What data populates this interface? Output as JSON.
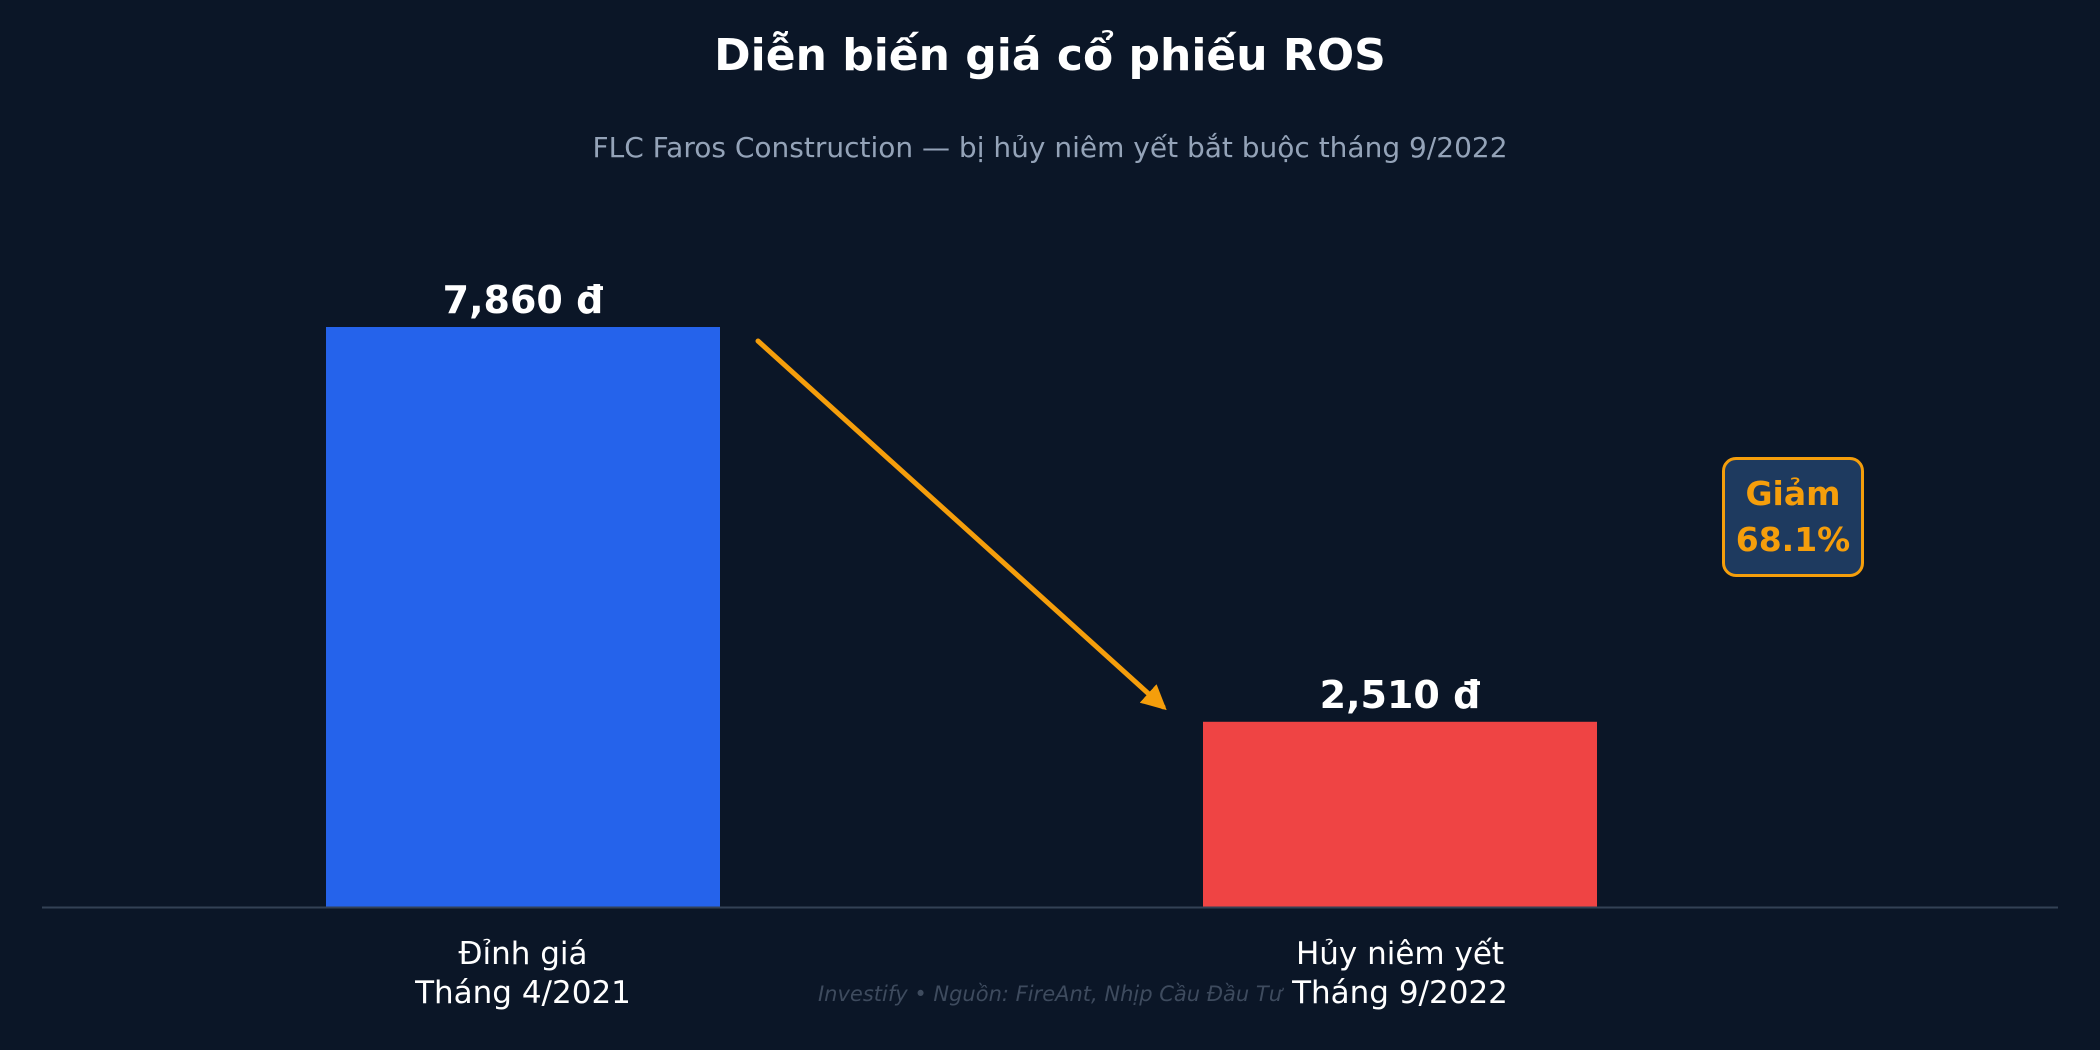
{
  "header": {
    "title": "Diễn biến giá cổ phiếu ROS",
    "subtitle": "FLC Faros Construction — bị hủy niêm yết bắt buộc tháng 9/2022"
  },
  "chart_data": {
    "type": "bar",
    "categories": [
      [
        "Đỉnh giá",
        "Tháng 4/2021"
      ],
      [
        "Hủy niêm yết",
        "Tháng 9/2022"
      ]
    ],
    "values": [
      7860,
      2510
    ],
    "value_labels": [
      "7,860 đ",
      "2,510 đ"
    ],
    "bar_colors": [
      "#2563eb",
      "#ef4444"
    ],
    "ylim": [
      0,
      7860
    ],
    "grid": false,
    "annotation": {
      "line1": "Giảm",
      "line2": "68.1%",
      "color": "#f59e0b"
    }
  },
  "footer": {
    "text": "Investify  •  Nguồn: FireAnt, Nhịp Cầu Đầu Tư"
  },
  "colors": {
    "background": "#0b1627",
    "axis": "#334155",
    "text": "#ffffff",
    "subtitle": "#94a3b8"
  }
}
